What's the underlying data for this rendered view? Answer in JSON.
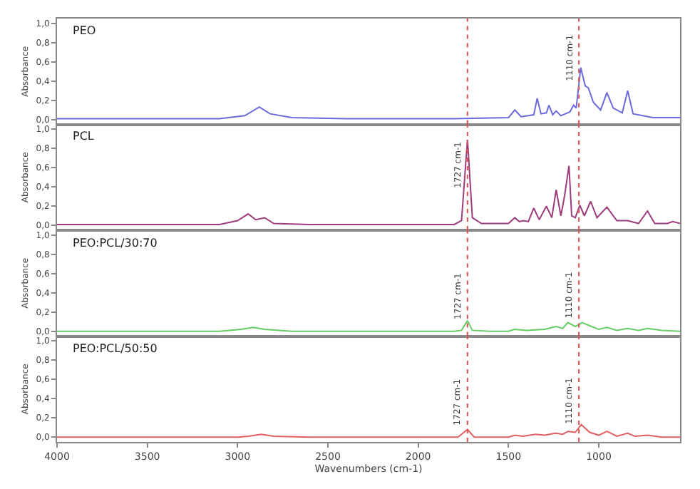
{
  "chart_data": [
    {
      "type": "line",
      "title": "PEO",
      "ylabel": "Absorbance",
      "xlim": [
        4000,
        550
      ],
      "xticks": [
        4000,
        3500,
        3000,
        2500,
        2000,
        1500,
        1000
      ],
      "ylim": [
        -0.05,
        1.05
      ],
      "yticks": [
        {
          "value": 0,
          "label": "0,0"
        },
        {
          "value": 0.2,
          "label": "0,2"
        },
        {
          "value": 0.4,
          "label": "0,4"
        },
        {
          "value": 0.6,
          "label": "0,6"
        },
        {
          "value": 0.8,
          "label": "0,8"
        },
        {
          "value": 1,
          "label": "1,0"
        }
      ],
      "tick_labels": "y",
      "grid": false,
      "series": [
        {
          "color": "#6a6adc",
          "x": [
            4000,
            3500,
            3100,
            2960,
            2880,
            2820,
            2700,
            2400,
            2000,
            1800,
            1500,
            1465,
            1430,
            1360,
            1341,
            1320,
            1290,
            1276,
            1255,
            1236,
            1210,
            1160,
            1139,
            1125,
            1100,
            1075,
            1058,
            1030,
            990,
            955,
            920,
            870,
            840,
            810,
            700,
            550
          ],
          "values": [
            0.01,
            0.01,
            0.01,
            0.04,
            0.13,
            0.06,
            0.02,
            0.01,
            0.01,
            0.01,
            0.02,
            0.1,
            0.03,
            0.05,
            0.22,
            0.06,
            0.07,
            0.15,
            0.05,
            0.09,
            0.04,
            0.08,
            0.15,
            0.12,
            0.54,
            0.35,
            0.33,
            0.18,
            0.1,
            0.28,
            0.12,
            0.07,
            0.3,
            0.06,
            0.02,
            0.02
          ]
        }
      ],
      "ref_lines": [
        {
          "axis": "x",
          "value": 1727,
          "color": "#e05050",
          "line_style": "dotted"
        },
        {
          "axis": "x",
          "value": 1110,
          "color": "#e05050",
          "line_style": "dotted",
          "label": "1110 cm-1"
        }
      ]
    },
    {
      "type": "line",
      "title": "PCL",
      "ylabel": "Absorbance",
      "xlim": [
        4000,
        550
      ],
      "xticks": [
        4000,
        3500,
        3000,
        2500,
        2000,
        1500,
        1000
      ],
      "ylim": [
        -0.05,
        1.05
      ],
      "yticks": [
        {
          "value": 0,
          "label": "0,0"
        },
        {
          "value": 0.2,
          "label": "0,2"
        },
        {
          "value": 0.4,
          "label": "0,4"
        },
        {
          "value": 0.6,
          "label": "0,6"
        },
        {
          "value": 0.8,
          "label": "0,8"
        },
        {
          "value": 1,
          "label": "1,0"
        }
      ],
      "tick_labels": "y",
      "grid": false,
      "series": [
        {
          "color": "#9c3c7c",
          "x": [
            4000,
            3500,
            3100,
            3000,
            2942,
            2900,
            2850,
            2800,
            2600,
            2000,
            1800,
            1760,
            1727,
            1700,
            1650,
            1500,
            1465,
            1440,
            1417,
            1390,
            1360,
            1330,
            1290,
            1260,
            1236,
            1210,
            1190,
            1165,
            1150,
            1130,
            1105,
            1080,
            1045,
            1010,
            955,
            900,
            840,
            780,
            730,
            690,
            620,
            590,
            550
          ],
          "values": [
            0.01,
            0.01,
            0.01,
            0.05,
            0.12,
            0.06,
            0.08,
            0.02,
            0.01,
            0.01,
            0.01,
            0.05,
            0.89,
            0.08,
            0.02,
            0.02,
            0.08,
            0.04,
            0.05,
            0.04,
            0.18,
            0.06,
            0.2,
            0.08,
            0.37,
            0.1,
            0.3,
            0.62,
            0.1,
            0.08,
            0.21,
            0.1,
            0.25,
            0.08,
            0.19,
            0.05,
            0.05,
            0.02,
            0.15,
            0.02,
            0.02,
            0.04,
            0.02
          ]
        }
      ],
      "ref_lines": [
        {
          "axis": "x",
          "value": 1727,
          "color": "#e05050",
          "line_style": "dotted",
          "label": "1727 cm-1"
        },
        {
          "axis": "x",
          "value": 1110,
          "color": "#e05050",
          "line_style": "dotted"
        }
      ]
    },
    {
      "type": "line",
      "title": "PEO:PCL/30:70",
      "ylabel": "Absorbance",
      "xlim": [
        4000,
        550
      ],
      "xticks": [
        4000,
        3500,
        3000,
        2500,
        2000,
        1500,
        1000
      ],
      "ylim": [
        -0.05,
        1.05
      ],
      "yticks": [
        {
          "value": 0,
          "label": "0,0"
        },
        {
          "value": 0.2,
          "label": "0,2"
        },
        {
          "value": 0.4,
          "label": "0,4"
        },
        {
          "value": 0.6,
          "label": "0,6"
        },
        {
          "value": 0.8,
          "label": "0,8"
        },
        {
          "value": 1,
          "label": "1,0"
        }
      ],
      "tick_labels": "y",
      "grid": false,
      "series": [
        {
          "color": "#66cc66",
          "x": [
            4000,
            3500,
            3100,
            2980,
            2916,
            2850,
            2700,
            2000,
            1800,
            1760,
            1727,
            1700,
            1600,
            1500,
            1467,
            1400,
            1300,
            1236,
            1200,
            1171,
            1130,
            1092,
            1040,
            1000,
            955,
            900,
            840,
            780,
            730,
            650,
            550
          ],
          "values": [
            0.0,
            0.0,
            0.0,
            0.02,
            0.04,
            0.02,
            0.0,
            0.0,
            0.0,
            0.01,
            0.11,
            0.01,
            0.0,
            0.0,
            0.02,
            0.01,
            0.02,
            0.05,
            0.03,
            0.09,
            0.05,
            0.09,
            0.05,
            0.02,
            0.04,
            0.01,
            0.03,
            0.01,
            0.03,
            0.01,
            0.0
          ]
        }
      ],
      "ref_lines": [
        {
          "axis": "x",
          "value": 1727,
          "color": "#e05050",
          "line_style": "dotted",
          "label": "1727 cm-1"
        },
        {
          "axis": "x",
          "value": 1110,
          "color": "#e05050",
          "line_style": "dotted",
          "label": "1110 cm-1"
        }
      ]
    },
    {
      "type": "line",
      "title": "PEO:PCL/50:50",
      "ylabel": "Absorbance",
      "xlabel": "Wavenumbers (cm-1)",
      "xlim": [
        4000,
        550
      ],
      "xticks": [
        4000,
        3500,
        3000,
        2500,
        2000,
        1500,
        1000
      ],
      "ylim": [
        -0.05,
        1.05
      ],
      "yticks": [
        {
          "value": 0,
          "label": "0,0"
        },
        {
          "value": 0.2,
          "label": "0,2"
        },
        {
          "value": 0.4,
          "label": "0,4"
        },
        {
          "value": 0.6,
          "label": "0,6"
        },
        {
          "value": 0.8,
          "label": "0,8"
        },
        {
          "value": 1,
          "label": "1,0"
        }
      ],
      "grid": false,
      "series": [
        {
          "color": "#e06060",
          "x": [
            4000,
            3500,
            3000,
            2940,
            2869,
            2800,
            2600,
            2000,
            1780,
            1727,
            1690,
            1500,
            1465,
            1420,
            1350,
            1300,
            1240,
            1200,
            1170,
            1130,
            1097,
            1050,
            1000,
            955,
            900,
            840,
            800,
            730,
            650,
            550
          ],
          "values": [
            0.0,
            0.0,
            0.0,
            0.01,
            0.03,
            0.01,
            0.0,
            0.0,
            0.0,
            0.08,
            0.0,
            0.0,
            0.02,
            0.01,
            0.03,
            0.02,
            0.04,
            0.03,
            0.06,
            0.05,
            0.13,
            0.05,
            0.02,
            0.06,
            0.01,
            0.04,
            0.01,
            0.02,
            0.0,
            0.0
          ]
        }
      ],
      "ref_lines": [
        {
          "axis": "x",
          "value": 1727,
          "color": "#e05050",
          "line_style": "dotted",
          "label": "1727 cm-1"
        },
        {
          "axis": "x",
          "value": 1110,
          "color": "#e05050",
          "line_style": "dotted",
          "label": "1110 cm-1"
        }
      ]
    }
  ]
}
